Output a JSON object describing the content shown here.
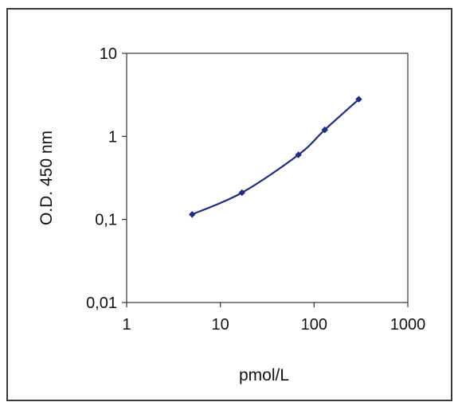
{
  "chart_data": {
    "type": "line",
    "title": "",
    "xlabel": "pmol/L",
    "ylabel": "O.D. 450 nm",
    "x_scale": "log",
    "y_scale": "log",
    "xlim": [
      1,
      1000
    ],
    "ylim": [
      0.01,
      10
    ],
    "x_ticks": [
      1,
      10,
      100,
      1000
    ],
    "x_tick_labels": [
      "1",
      "10",
      "100",
      "1000"
    ],
    "y_ticks": [
      0.01,
      0.1,
      1,
      10
    ],
    "y_tick_labels": [
      "0,01",
      "0,1",
      "1",
      "10"
    ],
    "grid": false,
    "legend": "none",
    "series": [
      {
        "color": "#1f2d7a",
        "x": [
          5,
          17,
          68,
          130,
          300
        ],
        "y": [
          0.115,
          0.21,
          0.6,
          1.2,
          2.8
        ]
      }
    ]
  }
}
